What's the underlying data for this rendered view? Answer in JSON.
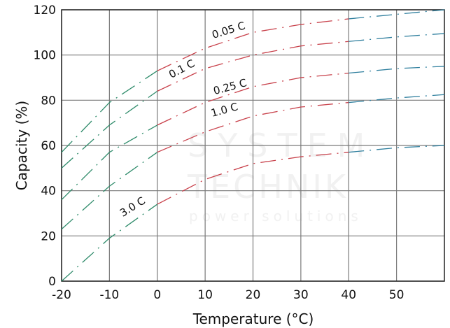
{
  "chart_data": {
    "type": "line",
    "title": "",
    "xlabel": "Temperature (°C)",
    "ylabel": "Capacity (%)",
    "xlim": [
      -20,
      60
    ],
    "ylim": [
      0,
      120
    ],
    "xticks": [
      "-20",
      "-10",
      "0",
      "10",
      "20",
      "30",
      "40",
      "50"
    ],
    "yticks": [
      "0",
      "20",
      "40",
      "60",
      "80",
      "100",
      "120"
    ],
    "grid": true,
    "line_style": "dash-dot",
    "segment_colors": {
      "below_0": "#2e8b6a",
      "0_to_40": "#c8404a",
      "above_40": "#2f7f9e"
    },
    "x": [
      -20,
      -10,
      0,
      10,
      20,
      30,
      40,
      50,
      60
    ],
    "series": [
      {
        "name": "0.05 C",
        "values": [
          57,
          79,
          93,
          103,
          110,
          113.5,
          116,
          118,
          120
        ]
      },
      {
        "name": "0.1 C",
        "values": [
          50,
          69,
          84,
          94,
          100,
          104,
          106,
          108,
          109.5
        ]
      },
      {
        "name": "0.25 C",
        "values": [
          36,
          57,
          69,
          79,
          86,
          90,
          92,
          94,
          95
        ]
      },
      {
        "name": "1.0 C",
        "values": [
          23,
          42,
          57,
          66,
          73,
          77,
          79,
          81,
          82.5
        ]
      },
      {
        "name": "3.0 C",
        "values": [
          0,
          19,
          34,
          45,
          52,
          55,
          57,
          59,
          60
        ]
      }
    ]
  },
  "watermark": {
    "line1": "SYSTEM",
    "line2": "TECHNIK",
    "line3": "power solutions"
  }
}
